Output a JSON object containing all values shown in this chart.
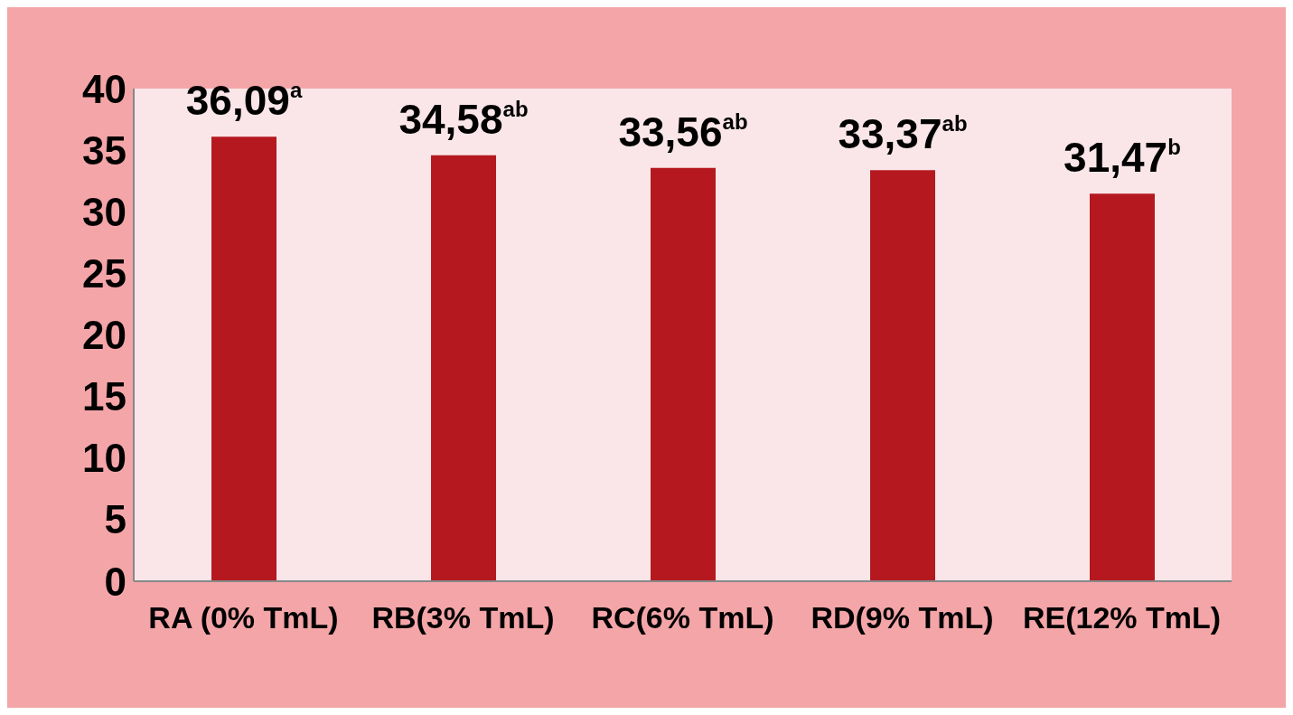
{
  "chart_data": {
    "type": "bar",
    "categories": [
      "RA (0% TmL)",
      "RB(3% TmL)",
      "RC(6% TmL)",
      "RD(9% TmL)",
      "RE(12% TmL)"
    ],
    "values": [
      36.09,
      34.58,
      33.56,
      33.37,
      31.47
    ],
    "value_labels": [
      "36,09$^{a}$",
      "34,58$^{ab}$",
      "33,56$^{ab}$",
      "33,37$^{ab}$",
      "31,47$^{b}$"
    ],
    "color": "#b5191f",
    "ylim": [
      0,
      40
    ],
    "yticks": [
      0,
      5,
      10,
      15,
      20,
      25,
      30,
      35,
      40
    ],
    "grid": false
  }
}
